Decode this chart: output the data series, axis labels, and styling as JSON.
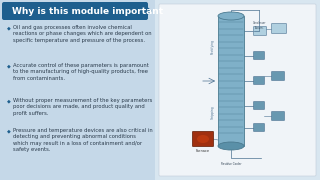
{
  "title": "Why is this module important",
  "title_bg_color": "#1e5f8e",
  "title_text_color": "#ffffff",
  "bg_color": "#c5d8e8",
  "bg_color_right": "#d8e6f0",
  "white_panel_color": "#f0f4f8",
  "white_panel_edge": "#c0ccd8",
  "bullet_points": [
    "Oil and gas processes often involve chemical\nreactions or phase changes which are dependent on\nspecific temperature and pressure of the process.",
    "Accurate control of these parameters is paramount\nto the manufacturing of high-quality products, free\nfrom contaminants.",
    "Without proper measurement of the key parameters\npoor decisions are made, and product quality and\nprofit suffers.",
    "Pressure and temperature devices are also critical in\ndetecting and preventing abnormal conditions\nwhich may result in a loss of containment and/or\nsafety events."
  ],
  "bullet_color": "#1e5f8e",
  "text_color": "#2a3a4a",
  "font_size_title": 6.5,
  "font_size_body": 3.8,
  "column_color": "#7fb0c8",
  "column_edge": "#4a7a90",
  "vessel_color": "#6898b0",
  "vessel_edge": "#4a7090",
  "furnace_color": "#a03010",
  "furnace_dark": "#601800",
  "tray_color": "#4a7a90",
  "condenser_color": "#b0d0e0",
  "line_color": "#4a7090"
}
